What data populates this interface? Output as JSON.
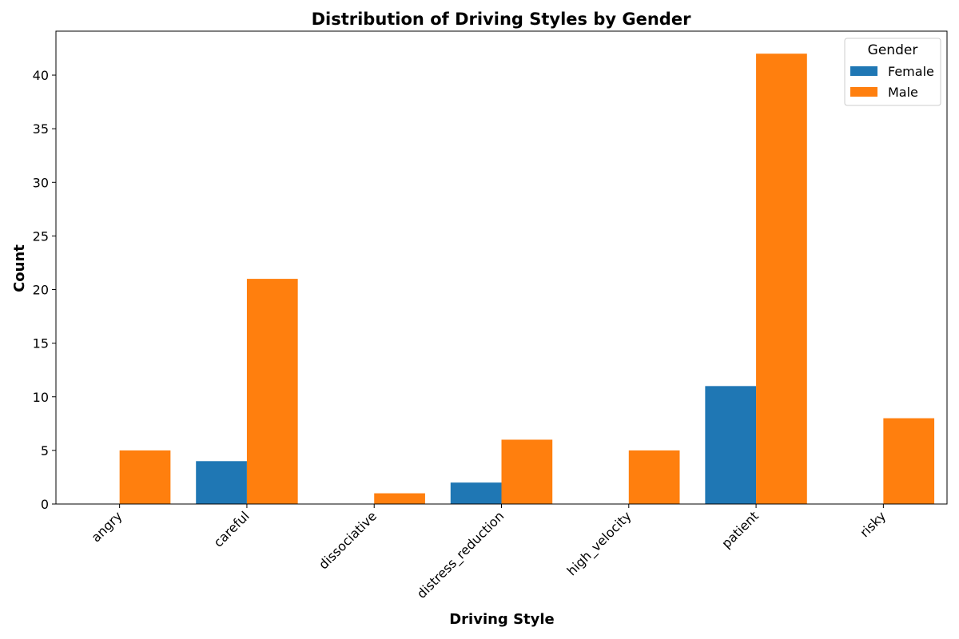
{
  "chart_data": {
    "type": "bar",
    "title": "Distribution of Driving Styles by Gender",
    "xlabel": "Driving Style",
    "ylabel": "Count",
    "categories": [
      "angry",
      "careful",
      "dissociative",
      "distress_reduction",
      "high_velocity",
      "patient",
      "risky"
    ],
    "series": [
      {
        "name": "Female",
        "color": "#1f77b4",
        "values": [
          0,
          4,
          0,
          2,
          0,
          11,
          0
        ]
      },
      {
        "name": "Male",
        "color": "#ff7f0e",
        "values": [
          5,
          21,
          1,
          6,
          5,
          42,
          8
        ]
      }
    ],
    "ylim": [
      0,
      44.1
    ],
    "yticks": [
      0,
      5,
      10,
      15,
      20,
      25,
      30,
      35,
      40
    ],
    "grid": false,
    "legend": {
      "title": "Gender",
      "placement": "top-right"
    }
  }
}
